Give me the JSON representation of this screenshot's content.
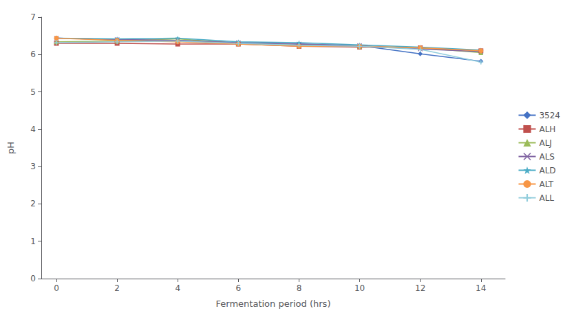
{
  "chart_data": {
    "type": "line",
    "x": [
      0,
      2,
      4,
      6,
      8,
      10,
      12,
      14
    ],
    "series": [
      {
        "name": "3524",
        "color": "#4472C4",
        "marker": "diamond",
        "values": [
          6.44,
          6.4,
          6.38,
          6.32,
          6.28,
          6.24,
          6.02,
          5.82
        ]
      },
      {
        "name": "ALH",
        "color": "#C0504D",
        "marker": "square",
        "values": [
          6.3,
          6.3,
          6.28,
          6.28,
          6.22,
          6.2,
          6.18,
          6.1
        ]
      },
      {
        "name": "ALJ",
        "color": "#9BBB59",
        "marker": "triangle",
        "values": [
          6.34,
          6.36,
          6.42,
          6.3,
          6.25,
          6.22,
          6.18,
          6.05
        ]
      },
      {
        "name": "ALS",
        "color": "#8064A2",
        "marker": "x",
        "values": [
          6.44,
          6.4,
          6.38,
          6.32,
          6.28,
          6.24,
          6.15,
          6.08
        ]
      },
      {
        "name": "ALD",
        "color": "#4BACC6",
        "marker": "star",
        "values": [
          6.44,
          6.42,
          6.44,
          6.34,
          6.32,
          6.26,
          6.2,
          6.12
        ]
      },
      {
        "name": "ALT",
        "color": "#F79646",
        "marker": "circle",
        "values": [
          6.44,
          6.38,
          6.34,
          6.28,
          6.22,
          6.22,
          6.18,
          6.1
        ]
      },
      {
        "name": "ALL",
        "color": "#92CDDC",
        "marker": "plus",
        "values": [
          6.32,
          6.34,
          6.36,
          6.3,
          6.25,
          6.22,
          6.14,
          5.8
        ]
      }
    ],
    "xlabel": "Fermentation period (hrs)",
    "ylabel": "pH",
    "xlim": [
      -0.5,
      14.8
    ],
    "ylim": [
      0,
      7
    ],
    "xticks": [
      0,
      2,
      4,
      6,
      8,
      10,
      12,
      14
    ],
    "yticks": [
      0,
      1,
      2,
      3,
      4,
      5,
      6,
      7
    ],
    "grid": false,
    "legend": "right"
  }
}
